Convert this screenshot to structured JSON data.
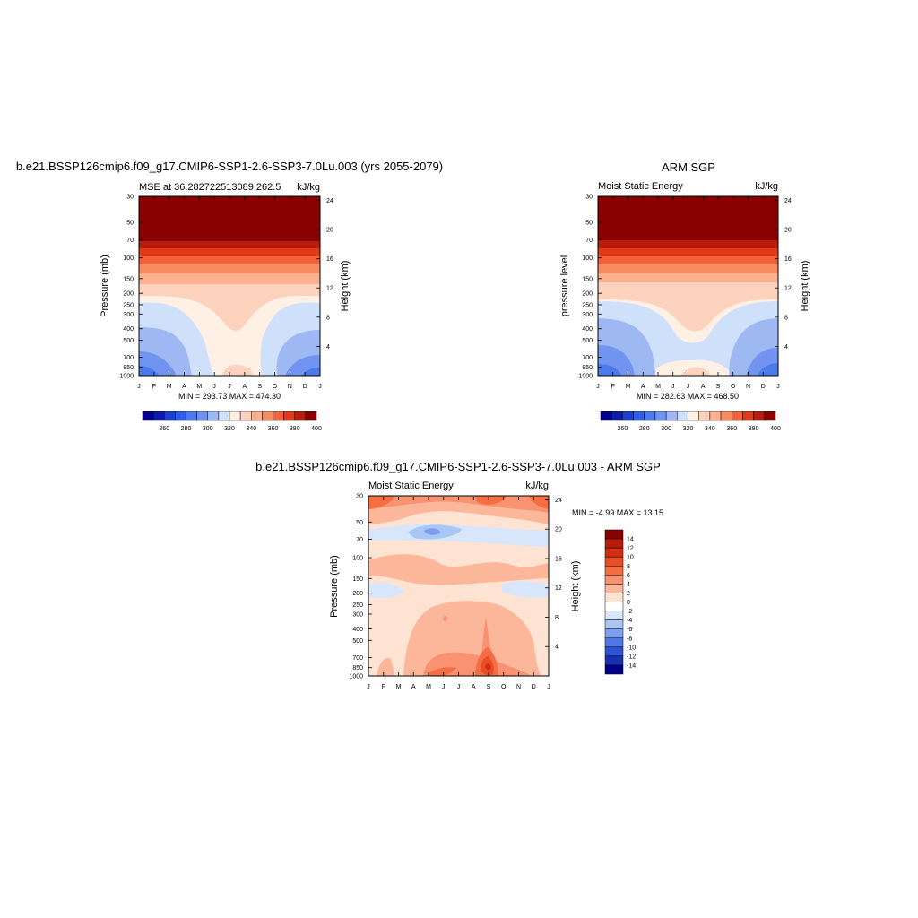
{
  "page": {
    "title_left": "b.e21.BSSP126cmip6.f09_g17.CMIP6-SSP1-2.6-SSP3-7.0Lu.003 (yrs 2055-2079)",
    "title_right": "ARM SGP",
    "title_bottom": "b.e21.BSSP126cmip6.f09_g17.CMIP6-SSP1-2.6-SSP3-7.0Lu.003 - ARM SGP"
  },
  "chart_data": [
    {
      "type": "heatmap",
      "subtitle_left": "MSE at 36.282722513089,262.5",
      "subtitle_right": "kJ/kg",
      "ylabel": "Pressure (mb)",
      "y2label": "Height (km)",
      "x_ticks": [
        "J",
        "F",
        "M",
        "A",
        "M",
        "J",
        "J",
        "A",
        "S",
        "O",
        "N",
        "D",
        "J"
      ],
      "y_ticks": [
        "30",
        "50",
        "70",
        "100",
        "150",
        "200",
        "250",
        "300",
        "400",
        "500",
        "700",
        "850",
        "1000"
      ],
      "y2_ticks": [
        "24",
        "20",
        "16",
        "12",
        "8",
        "4"
      ],
      "minmax": "MIN = 293.73 MAX = 474.30",
      "colorbar_labels": [
        "260",
        "280",
        "300",
        "320",
        "340",
        "360",
        "380",
        "400"
      ]
    },
    {
      "type": "heatmap",
      "subtitle_left": "Moist Static Energy",
      "subtitle_right": "kJ/kg",
      "ylabel": "pressure level",
      "y2label": "Height (km)",
      "x_ticks": [
        "J",
        "F",
        "M",
        "A",
        "M",
        "J",
        "J",
        "A",
        "S",
        "O",
        "N",
        "D",
        "J"
      ],
      "y_ticks": [
        "30",
        "50",
        "70",
        "100",
        "150",
        "200",
        "250",
        "300",
        "400",
        "500",
        "700",
        "850",
        "1000"
      ],
      "y2_ticks": [
        "24",
        "20",
        "16",
        "12",
        "8",
        "4"
      ],
      "minmax": "MIN = 282.63 MAX = 468.50",
      "colorbar_labels": [
        "260",
        "280",
        "300",
        "320",
        "340",
        "360",
        "380",
        "400"
      ]
    },
    {
      "type": "heatmap",
      "subtitle_left": "Moist Static Energy",
      "subtitle_right": "kJ/kg",
      "ylabel": "Pressure (mb)",
      "y2label": "Height (km)",
      "x_ticks": [
        "J",
        "F",
        "M",
        "A",
        "M",
        "J",
        "J",
        "A",
        "S",
        "O",
        "N",
        "D",
        "J"
      ],
      "y_ticks": [
        "30",
        "50",
        "70",
        "100",
        "150",
        "200",
        "250",
        "300",
        "400",
        "500",
        "700",
        "850",
        "1000"
      ],
      "y2_ticks": [
        "24",
        "20",
        "16",
        "12",
        "8",
        "4"
      ],
      "minmax": "MIN =  -4.99 MAX =  13.15",
      "colorbar_labels": [
        "14",
        "12",
        "10",
        "8",
        "6",
        "4",
        "2",
        "0",
        "-2",
        "-4",
        "-6",
        "-8",
        "-10",
        "-12",
        "-14"
      ]
    }
  ],
  "colors": {
    "abs_scale": [
      "#00008b",
      "#0a1ca8",
      "#1f3fcf",
      "#2f5fe6",
      "#4b7be8",
      "#7094ef",
      "#9eb8f4",
      "#cfe0fb",
      "#fff0e6",
      "#fdd2bd",
      "#fcb090",
      "#f98b63",
      "#f2623a",
      "#e23a18",
      "#b81d0c",
      "#8b0000"
    ],
    "diff_scale": [
      "#8b0000",
      "#b81d0c",
      "#d42c10",
      "#e84d25",
      "#f56e43",
      "#f99270",
      "#fcb79b",
      "#fee3d3",
      "#ffffff",
      "#d7e6fb",
      "#a9c6f5",
      "#7c9ff0",
      "#4f78e6",
      "#2d52d6",
      "#1a30b4",
      "#00008b"
    ]
  }
}
